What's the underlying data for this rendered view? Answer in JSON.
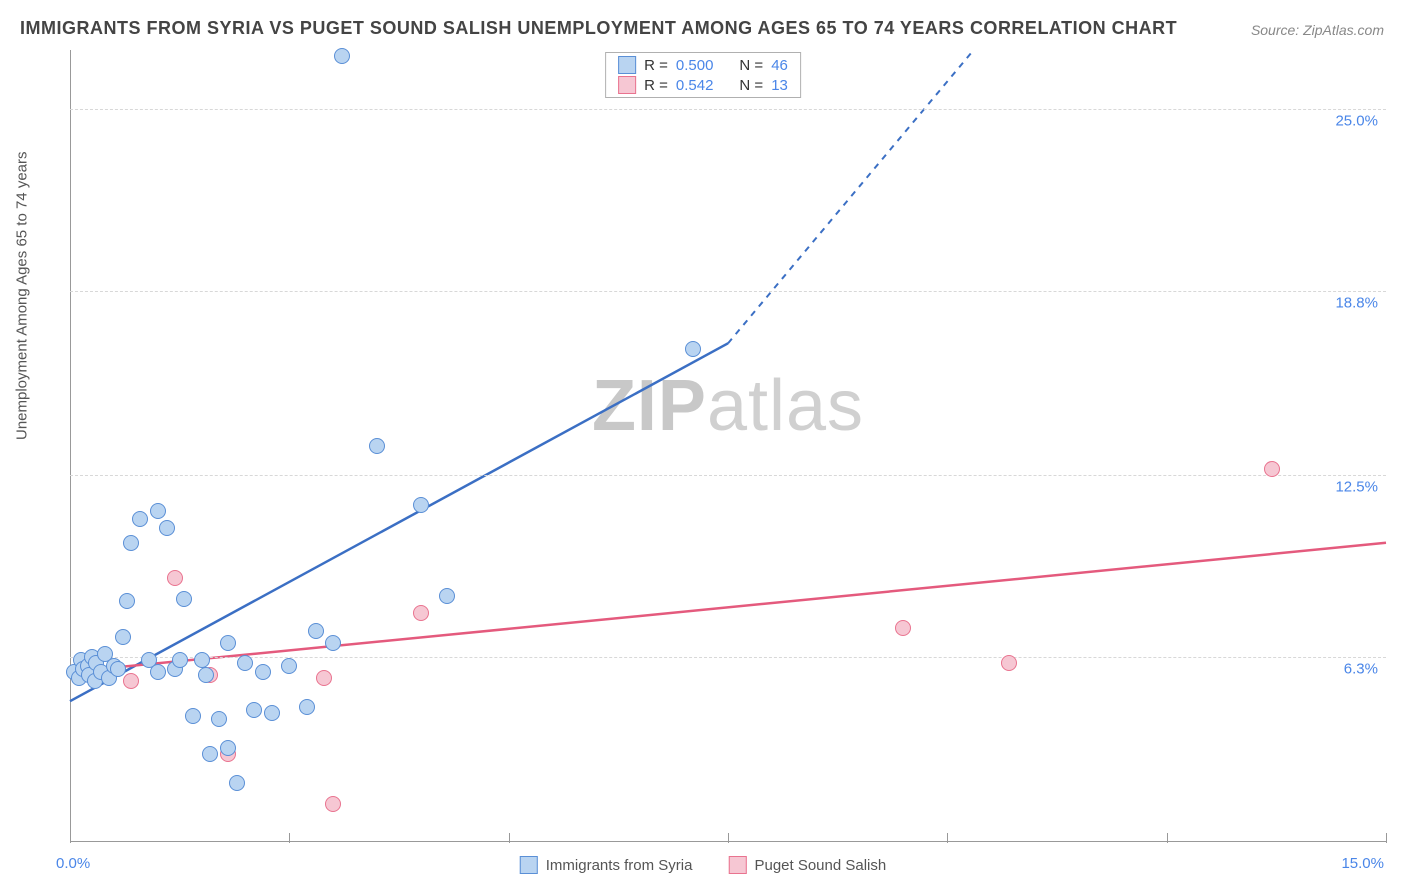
{
  "title": "IMMIGRANTS FROM SYRIA VS PUGET SOUND SALISH UNEMPLOYMENT AMONG AGES 65 TO 74 YEARS CORRELATION CHART",
  "source": "Source: ZipAtlas.com",
  "y_axis_label": "Unemployment Among Ages 65 to 74 years",
  "watermark_bold": "ZIP",
  "watermark_rest": "atlas",
  "chart": {
    "type": "scatter",
    "xlim": [
      0,
      15
    ],
    "ylim": [
      0,
      27
    ],
    "x_ticks": [
      0,
      2.5,
      5,
      7.5,
      10,
      12.5,
      15
    ],
    "x_min_label": "0.0%",
    "x_max_label": "15.0%",
    "y_gridlines": [
      {
        "value": 6.3,
        "label": "6.3%"
      },
      {
        "value": 12.5,
        "label": "12.5%"
      },
      {
        "value": 18.8,
        "label": "18.8%"
      },
      {
        "value": 25.0,
        "label": "25.0%"
      }
    ],
    "background_color": "#ffffff",
    "grid_color": "#d8d8d8",
    "axis_color": "#999999",
    "tick_label_color": "#4a86e8",
    "marker_radius": 8,
    "marker_stroke_width": 1.5,
    "series": [
      {
        "name": "Immigrants from Syria",
        "fill": "#b9d4f1",
        "stroke": "#5a8fd6",
        "reg_color": "#3b6fc4",
        "R": "0.500",
        "N": "46",
        "regression": {
          "x1": 0,
          "y1": 4.8,
          "x2_solid": 7.5,
          "y2_solid": 17.0,
          "x2_dash": 10.3,
          "y2_dash": 27.0
        },
        "points": [
          [
            0.05,
            5.8
          ],
          [
            0.1,
            5.6
          ],
          [
            0.12,
            6.2
          ],
          [
            0.15,
            5.9
          ],
          [
            0.2,
            6.0
          ],
          [
            0.22,
            5.7
          ],
          [
            0.25,
            6.3
          ],
          [
            0.28,
            5.5
          ],
          [
            0.3,
            6.1
          ],
          [
            0.35,
            5.8
          ],
          [
            0.4,
            6.4
          ],
          [
            0.45,
            5.6
          ],
          [
            0.5,
            6.0
          ],
          [
            0.55,
            5.9
          ],
          [
            0.6,
            7.0
          ],
          [
            0.65,
            8.2
          ],
          [
            0.7,
            10.2
          ],
          [
            0.8,
            11.0
          ],
          [
            0.9,
            6.2
          ],
          [
            1.0,
            11.3
          ],
          [
            1.0,
            5.8
          ],
          [
            1.1,
            10.7
          ],
          [
            1.2,
            5.9
          ],
          [
            1.25,
            6.2
          ],
          [
            1.3,
            8.3
          ],
          [
            1.4,
            4.3
          ],
          [
            1.5,
            6.2
          ],
          [
            1.55,
            5.7
          ],
          [
            1.6,
            3.0
          ],
          [
            1.7,
            4.2
          ],
          [
            1.8,
            3.2
          ],
          [
            1.8,
            6.8
          ],
          [
            1.9,
            2.0
          ],
          [
            2.0,
            6.1
          ],
          [
            2.1,
            4.5
          ],
          [
            2.2,
            5.8
          ],
          [
            2.3,
            4.4
          ],
          [
            2.5,
            6.0
          ],
          [
            2.7,
            4.6
          ],
          [
            2.8,
            7.2
          ],
          [
            3.0,
            6.8
          ],
          [
            3.1,
            26.8
          ],
          [
            3.5,
            13.5
          ],
          [
            4.0,
            11.5
          ],
          [
            4.3,
            8.4
          ],
          [
            7.1,
            16.8
          ]
        ]
      },
      {
        "name": "Puget Sound Salish",
        "fill": "#f6c7d3",
        "stroke": "#e9738f",
        "reg_color": "#e45a7d",
        "R": "0.542",
        "N": "13",
        "regression": {
          "x1": 0,
          "y1": 5.8,
          "x2_solid": 15,
          "y2_solid": 10.2,
          "x2_dash": 15,
          "y2_dash": 10.2
        },
        "points": [
          [
            0.1,
            5.7
          ],
          [
            0.3,
            5.6
          ],
          [
            0.5,
            5.9
          ],
          [
            0.7,
            5.5
          ],
          [
            1.2,
            9.0
          ],
          [
            1.6,
            5.7
          ],
          [
            1.8,
            3.0
          ],
          [
            2.9,
            5.6
          ],
          [
            3.0,
            1.3
          ],
          [
            9.5,
            7.3
          ],
          [
            10.7,
            6.1
          ],
          [
            13.7,
            12.7
          ],
          [
            4.0,
            7.8
          ]
        ]
      }
    ]
  },
  "legend_label_r": "R =",
  "legend_label_n": "N ="
}
